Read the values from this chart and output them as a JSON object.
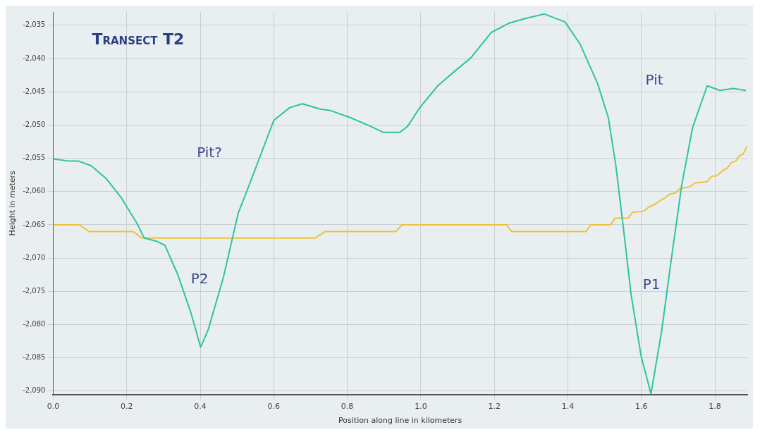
{
  "chart_data": {
    "type": "line",
    "title": "Transect T2",
    "xlabel": "Position along line in kilometers",
    "ylabel": "Height in meters",
    "xlim": [
      0,
      1.888
    ],
    "ylim": [
      -2090.5,
      -2033
    ],
    "xticks": [
      {
        "value": 0,
        "label": "0.0"
      },
      {
        "value": 0.2,
        "label": "0.2"
      },
      {
        "value": 0.4,
        "label": "0.4"
      },
      {
        "value": 0.6,
        "label": "0.6"
      },
      {
        "value": 0.8,
        "label": "0.8"
      },
      {
        "value": 1,
        "label": "1.0"
      },
      {
        "value": 1.2,
        "label": "1.2"
      },
      {
        "value": 1.4,
        "label": "1.4"
      },
      {
        "value": 1.6,
        "label": "1.6"
      },
      {
        "value": 1.8,
        "label": "1.8"
      }
    ],
    "yticks": [
      {
        "value": -2035,
        "label": "-2,035"
      },
      {
        "value": -2040,
        "label": "-2,040"
      },
      {
        "value": -2045,
        "label": "-2,045"
      },
      {
        "value": -2050,
        "label": "-2,050"
      },
      {
        "value": -2055,
        "label": "-2,055"
      },
      {
        "value": -2060,
        "label": "-2,060"
      },
      {
        "value": -2065,
        "label": "-2,065"
      },
      {
        "value": -2070,
        "label": "-2,070"
      },
      {
        "value": -2075,
        "label": "-2,075"
      },
      {
        "value": -2080,
        "label": "-2,080"
      },
      {
        "value": -2085,
        "label": "-2,085"
      },
      {
        "value": -2090,
        "label": "-2,090"
      }
    ],
    "grid": true,
    "marker": "none",
    "line_style": "solid",
    "series": [
      {
        "color": "#2ec4a0",
        "x": [
          0,
          0.041,
          0.068,
          0.103,
          0.145,
          0.186,
          0.228,
          0.248,
          0.283,
          0.304,
          0.339,
          0.374,
          0.401,
          0.422,
          0.463,
          0.503,
          0.532,
          0.567,
          0.6,
          0.643,
          0.678,
          0.726,
          0.753,
          0.809,
          0.864,
          0.898,
          0.943,
          0.964,
          0.997,
          1.046,
          1.088,
          1.136,
          1.191,
          1.239,
          1.282,
          1.336,
          1.392,
          1.433,
          1.481,
          1.51,
          1.53,
          1.551,
          1.572,
          1.599,
          1.626,
          1.655,
          1.682,
          1.71,
          1.739,
          1.779,
          1.814,
          1.849,
          1.884
        ],
        "values": [
          -2055.1,
          -2055.4,
          -2055.4,
          -2056.1,
          -2058.1,
          -2061,
          -2064.8,
          -2067,
          -2067.5,
          -2068.1,
          -2072.5,
          -2078.1,
          -2083.4,
          -2080.7,
          -2072.9,
          -2063.3,
          -2059.2,
          -2054.1,
          -2049.3,
          -2047.4,
          -2046.8,
          -2047.6,
          -2047.8,
          -2048.9,
          -2050.2,
          -2051.1,
          -2051.1,
          -2050.2,
          -2047.4,
          -2044.1,
          -2042.1,
          -2039.9,
          -2036.1,
          -2034.7,
          -2034,
          -2033.3,
          -2034.5,
          -2037.8,
          -2043.8,
          -2048.9,
          -2055.9,
          -2065.5,
          -2075.5,
          -2084.7,
          -2090.4,
          -2081,
          -2069.9,
          -2058.9,
          -2050.4,
          -2044.1,
          -2044.8,
          -2044.5,
          -2044.8
        ]
      },
      {
        "color": "#f2c13a",
        "x": [
          0,
          0.072,
          0.097,
          0.217,
          0.242,
          0.712,
          0.74,
          0.933,
          0.949,
          1.233,
          1.247,
          1.45,
          1.462,
          1.516,
          1.528,
          1.564,
          1.576,
          1.605,
          1.621,
          1.634,
          1.65,
          1.663,
          1.677,
          1.692,
          1.706,
          1.731,
          1.746,
          1.779,
          1.791,
          1.806,
          1.822,
          1.833,
          1.843,
          1.857,
          1.866,
          1.876,
          1.888
        ],
        "values": [
          -2065,
          -2065,
          -2066,
          -2066,
          -2067,
          -2067,
          -2066,
          -2066,
          -2065,
          -2065,
          -2066,
          -2066,
          -2065,
          -2065,
          -2064,
          -2064,
          -2063.1,
          -2063,
          -2062.3,
          -2062,
          -2061.4,
          -2061,
          -2060.4,
          -2060.2,
          -2059.5,
          -2059.3,
          -2058.7,
          -2058.5,
          -2057.7,
          -2057.6,
          -2056.8,
          -2056.5,
          -2055.7,
          -2055.4,
          -2054.6,
          -2054.4,
          -2053.1
        ]
      }
    ],
    "annotations": [
      "Pit?",
      "P2",
      "Pit",
      "P1"
    ]
  }
}
